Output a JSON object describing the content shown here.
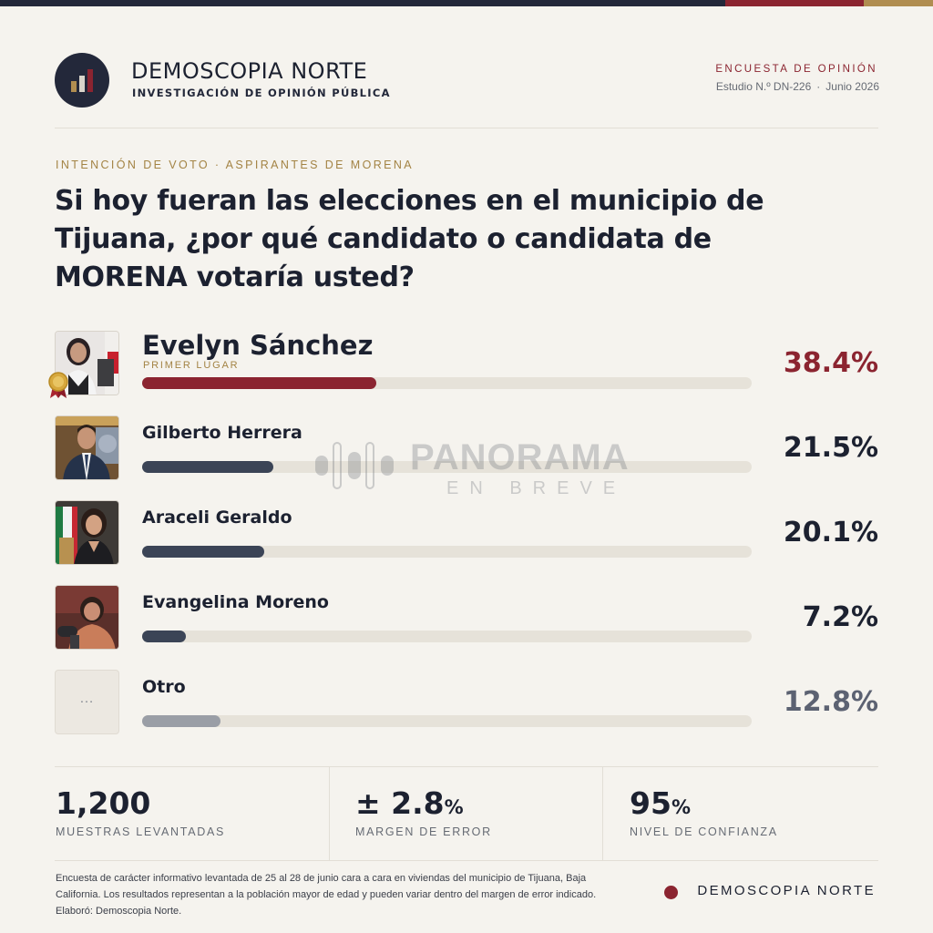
{
  "brand": {
    "name": "DEMOSCOPIA NORTE",
    "subtitle": "INVESTIGACIÓN DE OPINIÓN PÚBLICA"
  },
  "survey": {
    "kind": "ENCUESTA DE OPINIÓN",
    "study": "Estudio N.º DN-226",
    "separator": "·",
    "date": "Junio 2026"
  },
  "kicker": "INTENCIÓN DE VOTO · ASPIRANTES DE MORENA",
  "question": "Si hoy fueran las elecciones en el municipio de Tijuana, ¿por qué candidato o candidata de MORENA votaría usted?",
  "chart_data": {
    "type": "bar",
    "orientation": "horizontal",
    "title": "Si hoy fueran las elecciones en el municipio de Tijuana, ¿por qué candidato o candidata de MORENA votaría usted?",
    "categories": [
      "Evelyn Sánchez",
      "Gilberto Herrera",
      "Araceli Geraldo",
      "Evangelina Moreno",
      "Otro"
    ],
    "values": [
      38.4,
      21.5,
      20.1,
      7.2,
      12.8
    ],
    "labels": [
      "38.4%",
      "21.5%",
      "20.1%",
      "7.2%",
      "12.8%"
    ],
    "xlim": [
      0,
      100
    ],
    "grid": false,
    "leader_tag": "PRIMER LUGAR",
    "colors": {
      "leader": "#8b2430",
      "default": "#3b4456",
      "other": "#9a9ea6",
      "track": "#e6e2d9"
    }
  },
  "other_icon": "…",
  "watermark": {
    "line1": "PANORAMA",
    "line2": "EN BREVE"
  },
  "stats": [
    {
      "value": "1,200",
      "unit": "",
      "label": "MUESTRAS LEVANTADAS"
    },
    {
      "value": "± 2.8",
      "unit": "%",
      "label": "MARGEN DE ERROR"
    },
    {
      "value": "95",
      "unit": "%",
      "label": "NIVEL DE CONFIANZA"
    }
  ],
  "footnote": "Encuesta de carácter informativo levantada de 25 al 28 de junio cara a cara en viviendas del municipio de Tijuana, Baja California. Los resultados representan a la población mayor de edad y pueden variar dentro del margen de error indicado. Elaboró: Demoscopia Norte.",
  "footer_brand": "DEMOSCOPIA NORTE",
  "colors": {
    "accent_red": "#8b2430",
    "navy": "#23283a",
    "gold": "#b08d50",
    "background": "#f5f3ee"
  }
}
